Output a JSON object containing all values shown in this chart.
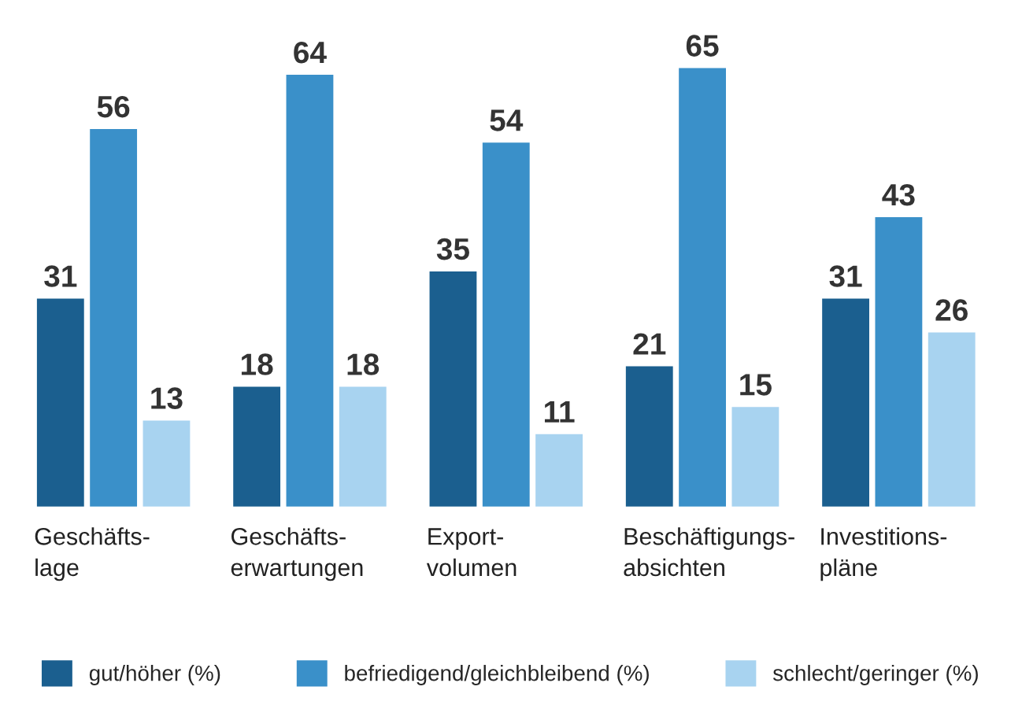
{
  "chart_data": {
    "type": "bar",
    "categories": [
      "Geschäfts-\nlage",
      "Geschäfts-\nerwartungen",
      "Export-\nvolumen",
      "Beschäftigungs-\nabsichten",
      "Investitions-\npläne"
    ],
    "series": [
      {
        "name": "gut/höher (%)",
        "color": "#1b5f8f",
        "values": [
          31,
          18,
          35,
          21,
          31
        ]
      },
      {
        "name": "befriedigend/gleichbleibend (%)",
        "color": "#3a90c9",
        "values": [
          56,
          64,
          54,
          65,
          43
        ]
      },
      {
        "name": "schlecht/geringer (%)",
        "color": "#a8d3f0",
        "values": [
          13,
          18,
          11,
          15,
          26
        ]
      }
    ],
    "data_labels": true,
    "legend": "bottom"
  }
}
